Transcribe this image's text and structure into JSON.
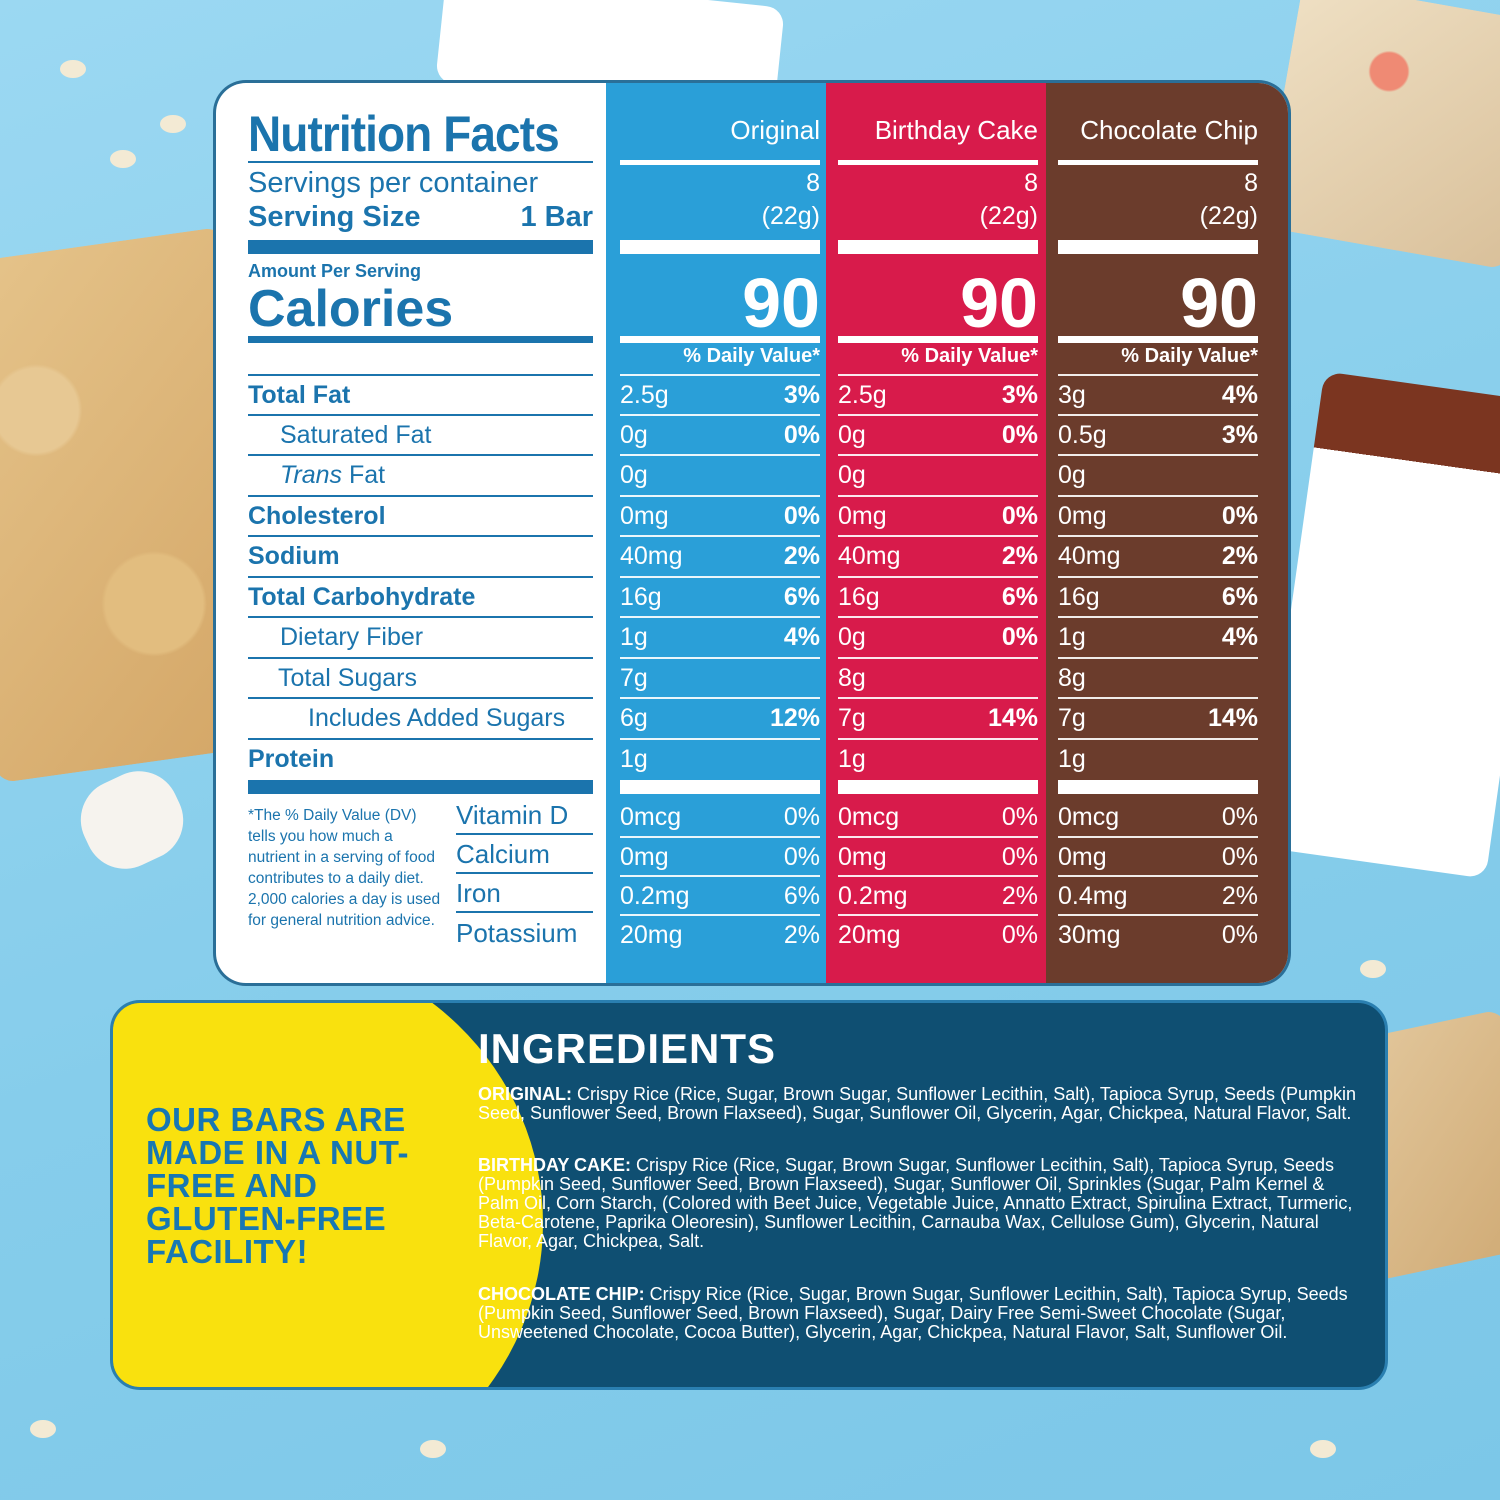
{
  "nutrition": {
    "title": "Nutrition Facts",
    "servings_label": "Servings per container",
    "serving_size_label": "Serving Size",
    "serving_size_value": "1 Bar",
    "amount_per_serving": "Amount Per Serving",
    "calories_label": "Calories",
    "rows": [
      "Total Fat",
      "Saturated Fat",
      "Trans Fat",
      "Cholesterol",
      "Sodium",
      "Total Carbohydrate",
      "Dietary Fiber",
      "Total Sugars",
      "Includes Added Sugars",
      "Protein"
    ],
    "trans_prefix": "Trans",
    "trans_suffix": " Fat",
    "dv_note": "*The % Daily Value (DV) tells you how much a nutrient in a serving of food contributes to a daily diet. 2,000 calories a day is used for general nutrition advice.",
    "vitamins": [
      "Vitamin D",
      "Calcium",
      "Iron",
      "Potassium"
    ],
    "flavors": [
      {
        "name": "Original",
        "color": "#2a9fd8",
        "servings": "8",
        "servings_weight": "(22g)",
        "calories": "90",
        "dv_label": "% Daily Value*",
        "rows": [
          [
            "2.5g",
            "3%"
          ],
          [
            "0g",
            "0%"
          ],
          [
            "0g",
            ""
          ],
          [
            "0mg",
            "0%"
          ],
          [
            "40mg",
            "2%"
          ],
          [
            "16g",
            "6%"
          ],
          [
            "1g",
            "4%"
          ],
          [
            "7g",
            ""
          ],
          [
            "6g",
            "12%"
          ],
          [
            "1g",
            ""
          ]
        ],
        "vitamins": [
          [
            "0mcg",
            "0%"
          ],
          [
            "0mg",
            "0%"
          ],
          [
            "0.2mg",
            "6%"
          ],
          [
            "20mg",
            "2%"
          ]
        ]
      },
      {
        "name": "Birthday Cake",
        "color": "#d81b4b",
        "servings": "8",
        "servings_weight": "(22g)",
        "calories": "90",
        "dv_label": "% Daily Value*",
        "rows": [
          [
            "2.5g",
            "3%"
          ],
          [
            "0g",
            "0%"
          ],
          [
            "0g",
            ""
          ],
          [
            "0mg",
            "0%"
          ],
          [
            "40mg",
            "2%"
          ],
          [
            "16g",
            "6%"
          ],
          [
            "0g",
            "0%"
          ],
          [
            "8g",
            ""
          ],
          [
            "7g",
            "14%"
          ],
          [
            "1g",
            ""
          ]
        ],
        "vitamins": [
          [
            "0mcg",
            "0%"
          ],
          [
            "0mg",
            "0%"
          ],
          [
            "0.2mg",
            "2%"
          ],
          [
            "20mg",
            "0%"
          ]
        ]
      },
      {
        "name": "Chocolate Chip",
        "color": "#6b3c2c",
        "servings": "8",
        "servings_weight": "(22g)",
        "calories": "90",
        "dv_label": "% Daily Value*",
        "rows": [
          [
            "3g",
            "4%"
          ],
          [
            "0.5g",
            "3%"
          ],
          [
            "0g",
            ""
          ],
          [
            "0mg",
            "0%"
          ],
          [
            "40mg",
            "2%"
          ],
          [
            "16g",
            "6%"
          ],
          [
            "1g",
            "4%"
          ],
          [
            "8g",
            ""
          ],
          [
            "7g",
            "14%"
          ],
          [
            "1g",
            ""
          ]
        ],
        "vitamins": [
          [
            "0mcg",
            "0%"
          ],
          [
            "0mg",
            "0%"
          ],
          [
            "0.4mg",
            "2%"
          ],
          [
            "30mg",
            "0%"
          ]
        ]
      }
    ]
  },
  "ingredients": {
    "title": "INGREDIENTS",
    "claim": "OUR BARS ARE MADE IN A NUT-FREE AND GLUTEN-FREE FACILITY!",
    "original_label": "ORIGINAL:",
    "original_text": " Crispy Rice (Rice, Sugar, Brown Sugar, Sunflower Lecithin, Salt), Tapioca Syrup, Seeds (Pumpkin Seed, Sunflower Seed, Brown Flaxseed), Sugar, Sunflower Oil, Glycerin, Agar, Chickpea, Natural Flavor, Salt.",
    "birthday_label": "BIRTHDAY CAKE:",
    "birthday_text": " Crispy Rice (Rice, Sugar, Brown Sugar, Sunflower Lecithin, Salt), Tapioca Syrup, Seeds (Pumpkin Seed, Sunflower Seed, Brown Flaxseed), Sugar, Sunflower Oil, Sprinkles (Sugar, Palm Kernel & Palm Oil, Corn Starch, (Colored with Beet Juice, Vegetable Juice, Annatto Extract, Spirulina Extract, Turmeric, Beta-Carotene, Paprika Oleoresin), Sunflower Lecithin, Carnauba Wax, Cellulose Gum), Glycerin, Natural Flavor, Agar, Chickpea, Salt.",
    "chocolate_label": "CHOCOLATE CHIP:",
    "chocolate_text": " Crispy Rice (Rice, Sugar, Brown Sugar, Sunflower Lecithin, Salt), Tapioca Syrup, Seeds (Pumpkin Seed, Sunflower Seed, Brown Flaxseed), Sugar, Dairy Free Semi-Sweet Chocolate (Sugar, Unsweetened Chocolate, Cocoa Butter), Glycerin, Agar, Chickpea, Natural Flavor, Salt, Sunflower Oil."
  }
}
